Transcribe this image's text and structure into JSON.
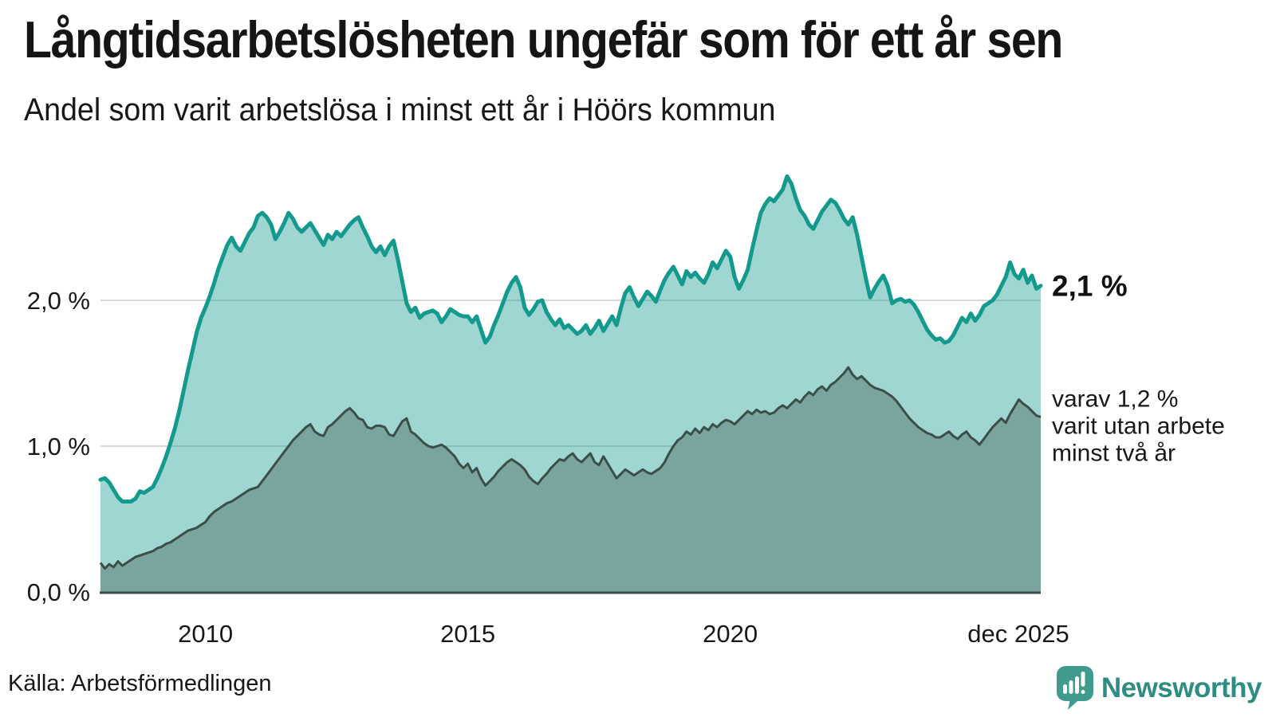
{
  "header": {
    "title": "Långtidsarbetslösheten ungefär som för ett år sen",
    "subtitle": "Andel som varit arbetslösa i minst ett år i Höörs kommun"
  },
  "footer": {
    "source": "Källa: Arbetsförmedlingen",
    "brand": "Newsworthy"
  },
  "colors": {
    "accent_teal": "#149a8d",
    "light_fill": "rgba(18,152,140,0.40)",
    "dark_fill": "#7aa59e",
    "dark_line": "#3a4f4a",
    "axis_line": "#3b4b47",
    "grid": "#d8d8d8",
    "text": "#181818",
    "brand_teal": "#2e8d83",
    "logo_bubble": "#3e9b8e"
  },
  "chart_data": {
    "type": "area",
    "title": "Långtidsarbetslösheten ungefär som för ett år sen",
    "subtitle": "Andel som varit arbetslösa i minst ett år i Höörs kommun",
    "x_start": "2008-01",
    "x_end": "2025-12",
    "frequency": "monthly",
    "ylim": [
      0,
      2.95
    ],
    "grid": "horizontal",
    "y_ticks": [
      {
        "label": "0,0 %",
        "value": 0
      },
      {
        "label": "1,0 %",
        "value": 1
      },
      {
        "label": "2,0 %",
        "value": 2
      }
    ],
    "x_ticks": [
      {
        "label": "2010",
        "index": 24
      },
      {
        "label": "2015",
        "index": 84
      },
      {
        "label": "2020",
        "index": 144
      },
      {
        "label": "dec 2025",
        "index": 215
      }
    ],
    "end_labels": {
      "primary": "2,1 %",
      "secondary": [
        "varav 1,2 %",
        "varit utan arbete",
        "minst två år"
      ]
    },
    "series": [
      {
        "name": "Arbetslösa minst ett år",
        "final_value": "2,1 %",
        "values": [
          0.77,
          0.78,
          0.75,
          0.7,
          0.65,
          0.62,
          0.62,
          0.62,
          0.64,
          0.69,
          0.68,
          0.7,
          0.72,
          0.78,
          0.85,
          0.93,
          1.02,
          1.12,
          1.24,
          1.38,
          1.52,
          1.65,
          1.78,
          1.88,
          1.95,
          2.03,
          2.12,
          2.22,
          2.3,
          2.38,
          2.43,
          2.37,
          2.34,
          2.4,
          2.46,
          2.5,
          2.58,
          2.6,
          2.57,
          2.52,
          2.42,
          2.47,
          2.53,
          2.6,
          2.56,
          2.5,
          2.47,
          2.5,
          2.53,
          2.48,
          2.43,
          2.38,
          2.45,
          2.42,
          2.47,
          2.44,
          2.48,
          2.52,
          2.55,
          2.57,
          2.5,
          2.44,
          2.37,
          2.33,
          2.37,
          2.31,
          2.37,
          2.41,
          2.28,
          2.13,
          1.98,
          1.92,
          1.95,
          1.88,
          1.91,
          1.92,
          1.93,
          1.91,
          1.85,
          1.89,
          1.94,
          1.92,
          1.9,
          1.89,
          1.89,
          1.85,
          1.89,
          1.8,
          1.71,
          1.75,
          1.83,
          1.9,
          1.98,
          2.06,
          2.12,
          2.16,
          2.09,
          1.95,
          1.9,
          1.94,
          1.99,
          2.0,
          1.92,
          1.87,
          1.83,
          1.87,
          1.81,
          1.83,
          1.8,
          1.77,
          1.79,
          1.83,
          1.77,
          1.81,
          1.86,
          1.79,
          1.84,
          1.89,
          1.83,
          1.95,
          2.05,
          2.09,
          2.02,
          1.96,
          2.01,
          2.06,
          2.03,
          1.99,
          2.07,
          2.14,
          2.19,
          2.23,
          2.17,
          2.11,
          2.2,
          2.16,
          2.19,
          2.15,
          2.12,
          2.18,
          2.26,
          2.22,
          2.28,
          2.34,
          2.3,
          2.16,
          2.08,
          2.14,
          2.21,
          2.35,
          2.48,
          2.6,
          2.66,
          2.7,
          2.68,
          2.72,
          2.76,
          2.85,
          2.8,
          2.7,
          2.62,
          2.58,
          2.52,
          2.49,
          2.55,
          2.61,
          2.65,
          2.69,
          2.67,
          2.62,
          2.56,
          2.52,
          2.57,
          2.45,
          2.3,
          2.15,
          2.02,
          2.08,
          2.13,
          2.17,
          2.1,
          1.98,
          2.0,
          2.01,
          1.99,
          2.0,
          1.97,
          1.92,
          1.86,
          1.8,
          1.76,
          1.73,
          1.74,
          1.71,
          1.72,
          1.76,
          1.82,
          1.88,
          1.85,
          1.91,
          1.86,
          1.9,
          1.96,
          1.98,
          2.0,
          2.04,
          2.1,
          2.16,
          2.26,
          2.18,
          2.15,
          2.21,
          2.12,
          2.17,
          2.08,
          2.1
        ]
      },
      {
        "name": "varav utan arbete minst två år",
        "final_value": "1,2 %",
        "values": [
          0.2,
          0.16,
          0.19,
          0.17,
          0.21,
          0.18,
          0.2,
          0.22,
          0.24,
          0.25,
          0.26,
          0.27,
          0.28,
          0.3,
          0.31,
          0.33,
          0.34,
          0.36,
          0.38,
          0.4,
          0.42,
          0.43,
          0.44,
          0.46,
          0.48,
          0.52,
          0.55,
          0.57,
          0.59,
          0.61,
          0.62,
          0.64,
          0.66,
          0.68,
          0.7,
          0.71,
          0.72,
          0.76,
          0.8,
          0.84,
          0.88,
          0.92,
          0.96,
          1.0,
          1.04,
          1.07,
          1.1,
          1.13,
          1.15,
          1.1,
          1.08,
          1.07,
          1.13,
          1.15,
          1.18,
          1.21,
          1.24,
          1.26,
          1.23,
          1.19,
          1.18,
          1.13,
          1.12,
          1.14,
          1.14,
          1.13,
          1.08,
          1.07,
          1.12,
          1.17,
          1.19,
          1.1,
          1.08,
          1.05,
          1.02,
          1.0,
          0.99,
          1.0,
          1.01,
          0.99,
          0.96,
          0.93,
          0.88,
          0.85,
          0.88,
          0.82,
          0.85,
          0.78,
          0.73,
          0.76,
          0.79,
          0.83,
          0.86,
          0.89,
          0.91,
          0.89,
          0.87,
          0.84,
          0.79,
          0.76,
          0.74,
          0.78,
          0.81,
          0.85,
          0.88,
          0.91,
          0.9,
          0.93,
          0.95,
          0.91,
          0.89,
          0.92,
          0.95,
          0.89,
          0.87,
          0.93,
          0.88,
          0.83,
          0.78,
          0.81,
          0.84,
          0.82,
          0.8,
          0.82,
          0.84,
          0.82,
          0.81,
          0.83,
          0.85,
          0.89,
          0.95,
          1.0,
          1.04,
          1.06,
          1.1,
          1.08,
          1.12,
          1.09,
          1.13,
          1.11,
          1.15,
          1.13,
          1.16,
          1.18,
          1.17,
          1.15,
          1.18,
          1.21,
          1.24,
          1.22,
          1.25,
          1.23,
          1.24,
          1.22,
          1.23,
          1.26,
          1.28,
          1.26,
          1.29,
          1.32,
          1.3,
          1.34,
          1.37,
          1.35,
          1.39,
          1.41,
          1.38,
          1.42,
          1.44,
          1.47,
          1.5,
          1.54,
          1.49,
          1.46,
          1.48,
          1.45,
          1.42,
          1.4,
          1.39,
          1.38,
          1.36,
          1.34,
          1.31,
          1.27,
          1.23,
          1.19,
          1.16,
          1.13,
          1.11,
          1.09,
          1.08,
          1.06,
          1.06,
          1.08,
          1.1,
          1.07,
          1.05,
          1.08,
          1.1,
          1.06,
          1.04,
          1.01,
          1.05,
          1.09,
          1.13,
          1.16,
          1.19,
          1.16,
          1.22,
          1.27,
          1.32,
          1.29,
          1.27,
          1.24,
          1.21,
          1.2
        ]
      }
    ]
  }
}
